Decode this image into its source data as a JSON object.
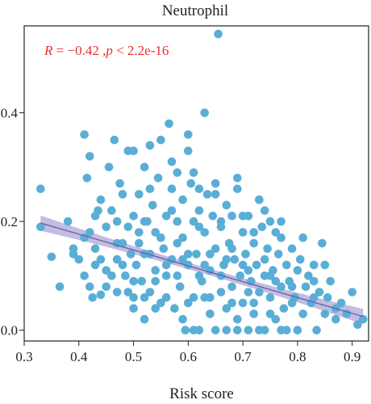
{
  "chart_data": {
    "type": "scatter",
    "title": "Neutrophil",
    "xlabel": "Risk score",
    "ylabel": "",
    "xlim": [
      0.3,
      0.93
    ],
    "ylim": [
      -0.02,
      0.56
    ],
    "xticks": [
      "0.3",
      "0.4",
      "0.5",
      "0.6",
      "0.7",
      "0.8",
      "0.9"
    ],
    "yticks": [
      "0.0",
      "0.2",
      "0.4"
    ],
    "annotation": {
      "r_symbol": "R",
      "r_value": " = −0.42 ,",
      "p_symbol": "p",
      "p_value": " < 2.2e-16",
      "color": "#e8302f"
    },
    "grid": false,
    "legend": "none",
    "colors": {
      "points": "#5aaed6",
      "line": "#6a64b0",
      "band": "#b7b2dc"
    },
    "regression": {
      "x": [
        0.33,
        0.92
      ],
      "y": [
        0.197,
        0.025
      ],
      "ci_halfwidth_ends": 0.014,
      "ci_halfwidth_mid": 0.006
    },
    "points": [
      [
        0.33,
        0.26
      ],
      [
        0.33,
        0.19
      ],
      [
        0.35,
        0.135
      ],
      [
        0.365,
        0.08
      ],
      [
        0.38,
        0.2
      ],
      [
        0.39,
        0.14
      ],
      [
        0.4,
        0.13
      ],
      [
        0.41,
        0.36
      ],
      [
        0.41,
        0.17
      ],
      [
        0.415,
        0.28
      ],
      [
        0.42,
        0.32
      ],
      [
        0.42,
        0.08
      ],
      [
        0.425,
        0.06
      ],
      [
        0.43,
        0.21
      ],
      [
        0.43,
        0.15
      ],
      [
        0.435,
        0.22
      ],
      [
        0.44,
        0.24
      ],
      [
        0.44,
        0.065
      ],
      [
        0.45,
        0.11
      ],
      [
        0.45,
        0.19
      ],
      [
        0.455,
        0.3
      ],
      [
        0.46,
        0.22
      ],
      [
        0.465,
        0.35
      ],
      [
        0.47,
        0.13
      ],
      [
        0.47,
        0.07
      ],
      [
        0.475,
        0.27
      ],
      [
        0.48,
        0.16
      ],
      [
        0.48,
        0.25
      ],
      [
        0.485,
        0.1
      ],
      [
        0.49,
        0.33
      ],
      [
        0.49,
        0.19
      ],
      [
        0.495,
        0.14
      ],
      [
        0.5,
        0.33
      ],
      [
        0.5,
        0.21
      ],
      [
        0.5,
        0.06
      ],
      [
        0.505,
        0.12
      ],
      [
        0.51,
        0.25
      ],
      [
        0.51,
        0.16
      ],
      [
        0.515,
        0.09
      ],
      [
        0.52,
        0.3
      ],
      [
        0.52,
        0.02
      ],
      [
        0.525,
        0.2
      ],
      [
        0.53,
        0.34
      ],
      [
        0.53,
        0.14
      ],
      [
        0.53,
        0.07
      ],
      [
        0.535,
        0.23
      ],
      [
        0.54,
        0.18
      ],
      [
        0.54,
        0.11
      ],
      [
        0.545,
        0.28
      ],
      [
        0.55,
        0.05
      ],
      [
        0.55,
        0.35
      ],
      [
        0.555,
        0.15
      ],
      [
        0.56,
        0.21
      ],
      [
        0.56,
        0.1
      ],
      [
        0.565,
        0.38
      ],
      [
        0.57,
        0.26
      ],
      [
        0.57,
        0.13
      ],
      [
        0.575,
        0.04
      ],
      [
        0.58,
        0.2
      ],
      [
        0.58,
        0.29
      ],
      [
        0.585,
        0.08
      ],
      [
        0.59,
        0.17
      ],
      [
        0.59,
        0.24
      ],
      [
        0.595,
        0.0
      ],
      [
        0.6,
        0.33
      ],
      [
        0.6,
        0.36
      ],
      [
        0.6,
        0.12
      ],
      [
        0.605,
        0.27
      ],
      [
        0.61,
        0.06
      ],
      [
        0.61,
        0.2
      ],
      [
        0.615,
        0.14
      ],
      [
        0.62,
        0.26
      ],
      [
        0.62,
        0.0
      ],
      [
        0.625,
        0.09
      ],
      [
        0.63,
        0.4
      ],
      [
        0.63,
        0.18
      ],
      [
        0.635,
        0.25
      ],
      [
        0.64,
        0.11
      ],
      [
        0.64,
        0.03
      ],
      [
        0.645,
        0.21
      ],
      [
        0.65,
        0.15
      ],
      [
        0.65,
        0.25
      ],
      [
        0.655,
        0.545
      ],
      [
        0.66,
        0.07
      ],
      [
        0.66,
        0.19
      ],
      [
        0.665,
        0.12
      ],
      [
        0.67,
        0.0
      ],
      [
        0.67,
        0.23
      ],
      [
        0.675,
        0.16
      ],
      [
        0.68,
        0.08
      ],
      [
        0.68,
        0.21
      ],
      [
        0.685,
        0.13
      ],
      [
        0.69,
        0.26
      ],
      [
        0.69,
        0.02
      ],
      [
        0.695,
        0.1
      ],
      [
        0.7,
        0.18
      ],
      [
        0.7,
        0.05
      ],
      [
        0.705,
        0.14
      ],
      [
        0.71,
        0.21
      ],
      [
        0.71,
        0.0
      ],
      [
        0.715,
        0.09
      ],
      [
        0.72,
        0.16
      ],
      [
        0.72,
        0.03
      ],
      [
        0.725,
        0.12
      ],
      [
        0.73,
        0.24
      ],
      [
        0.73,
        0.07
      ],
      [
        0.735,
        0.19
      ],
      [
        0.74,
        0.1
      ],
      [
        0.74,
        0.0
      ],
      [
        0.745,
        0.15
      ],
      [
        0.75,
        0.06
      ],
      [
        0.75,
        0.2
      ],
      [
        0.755,
        0.11
      ],
      [
        0.76,
        0.02
      ],
      [
        0.765,
        0.14
      ],
      [
        0.77,
        0.08
      ],
      [
        0.77,
        0.17
      ],
      [
        0.775,
        0.04
      ],
      [
        0.78,
        0.12
      ],
      [
        0.78,
        0.0
      ],
      [
        0.785,
        0.09
      ],
      [
        0.79,
        0.15
      ],
      [
        0.795,
        0.06
      ],
      [
        0.8,
        0.11
      ],
      [
        0.8,
        0.0
      ],
      [
        0.805,
        0.13
      ],
      [
        0.81,
        0.03
      ],
      [
        0.815,
        0.08
      ],
      [
        0.82,
        0.1
      ],
      [
        0.825,
        0.05
      ],
      [
        0.83,
        0.12
      ],
      [
        0.835,
        0.0
      ],
      [
        0.84,
        0.07
      ],
      [
        0.845,
        0.16
      ],
      [
        0.85,
        0.03
      ],
      [
        0.855,
        0.06
      ],
      [
        0.86,
        0.09
      ],
      [
        0.87,
        0.02
      ],
      [
        0.88,
        0.05
      ],
      [
        0.89,
        0.03
      ],
      [
        0.9,
        0.07
      ],
      [
        0.91,
        0.01
      ],
      [
        0.92,
        0.02
      ],
      [
        0.52,
        0.06
      ],
      [
        0.56,
        0.06
      ],
      [
        0.6,
        0.05
      ],
      [
        0.64,
        0.06
      ],
      [
        0.68,
        0.05
      ],
      [
        0.72,
        0.05
      ],
      [
        0.58,
        0.1
      ],
      [
        0.62,
        0.1
      ],
      [
        0.66,
        0.1
      ],
      [
        0.7,
        0.12
      ],
      [
        0.74,
        0.13
      ],
      [
        0.76,
        0.09
      ],
      [
        0.54,
        0.09
      ],
      [
        0.5,
        0.09
      ],
      [
        0.46,
        0.1
      ],
      [
        0.44,
        0.13
      ],
      [
        0.48,
        0.12
      ],
      [
        0.52,
        0.14
      ],
      [
        0.56,
        0.12
      ],
      [
        0.6,
        0.14
      ],
      [
        0.64,
        0.14
      ],
      [
        0.68,
        0.15
      ],
      [
        0.72,
        0.18
      ],
      [
        0.76,
        0.18
      ],
      [
        0.62,
        0.19
      ],
      [
        0.58,
        0.16
      ],
      [
        0.66,
        0.2
      ],
      [
        0.7,
        0.21
      ],
      [
        0.74,
        0.22
      ],
      [
        0.62,
        0.22
      ],
      [
        0.57,
        0.22
      ],
      [
        0.52,
        0.2
      ],
      [
        0.47,
        0.2
      ],
      [
        0.42,
        0.18
      ],
      [
        0.63,
        0.06
      ],
      [
        0.59,
        0.02
      ],
      [
        0.67,
        0.04
      ],
      [
        0.71,
        0.07
      ],
      [
        0.75,
        0.03
      ],
      [
        0.79,
        0.05
      ],
      [
        0.83,
        0.09
      ],
      [
        0.87,
        0.04
      ],
      [
        0.73,
        0.0
      ],
      [
        0.77,
        0.0
      ],
      [
        0.69,
        0.0
      ],
      [
        0.65,
        0.0
      ],
      [
        0.61,
        0.0
      ],
      [
        0.55,
        0.17
      ],
      [
        0.53,
        0.26
      ],
      [
        0.51,
        0.18
      ],
      [
        0.49,
        0.07
      ],
      [
        0.47,
        0.16
      ],
      [
        0.45,
        0.08
      ],
      [
        0.43,
        0.12
      ],
      [
        0.41,
        0.1
      ],
      [
        0.39,
        0.15
      ],
      [
        0.57,
        0.31
      ],
      [
        0.61,
        0.29
      ],
      [
        0.65,
        0.27
      ],
      [
        0.69,
        0.28
      ],
      [
        0.73,
        0.24
      ],
      [
        0.77,
        0.2
      ],
      [
        0.81,
        0.17
      ],
      [
        0.85,
        0.12
      ],
      [
        0.59,
        0.13
      ],
      [
        0.63,
        0.12
      ],
      [
        0.67,
        0.13
      ],
      [
        0.71,
        0.11
      ],
      [
        0.75,
        0.1
      ],
      [
        0.79,
        0.08
      ],
      [
        0.83,
        0.06
      ],
      [
        0.54,
        0.04
      ],
      [
        0.5,
        0.04
      ]
    ]
  }
}
